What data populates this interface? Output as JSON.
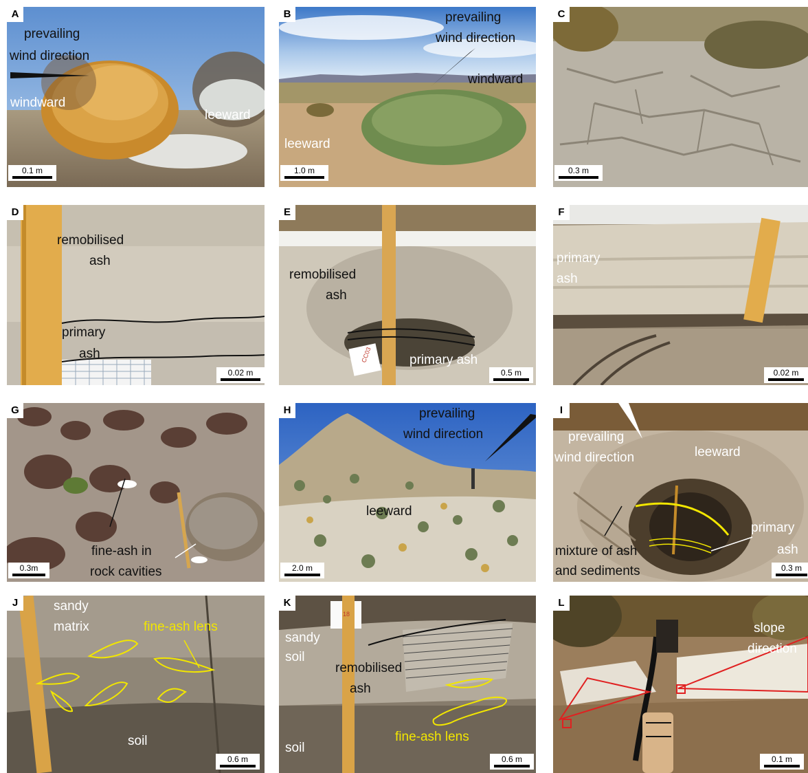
{
  "panels": {
    "A": {
      "letter": "A",
      "scale": "0.1 m",
      "l1": "prevailing",
      "l2": "wind direction",
      "l3": "windward",
      "l4": "leeward"
    },
    "B": {
      "letter": "B",
      "scale": "1.0 m",
      "l1": "prevailing",
      "l2": "wind direction",
      "l3": "windward",
      "l4": "leeward"
    },
    "C": {
      "letter": "C",
      "scale": "0.3 m"
    },
    "D": {
      "letter": "D",
      "scale": "0.02 m",
      "l1": "remobilised",
      "l2": "ash",
      "l3": "primary",
      "l4": "ash"
    },
    "E": {
      "letter": "E",
      "scale": "0.5 m",
      "l1": "remobilised",
      "l2": "ash",
      "l3": "primary ash",
      "paper": "CC03"
    },
    "F": {
      "letter": "F",
      "scale": "0.02 m",
      "l1": "primary",
      "l2": "ash"
    },
    "G": {
      "letter": "G",
      "scale": "0.3m",
      "l1": "fine-ash in",
      "l2": "rock cavities"
    },
    "H": {
      "letter": "H",
      "scale": "2.0 m",
      "l1": "prevailing",
      "l2": "wind direction",
      "l3": "leeward"
    },
    "I": {
      "letter": "I",
      "scale": "0.3 m",
      "l1": "prevailing",
      "l2": "wind direction",
      "l3": "leeward",
      "l4": "mixture of ash",
      "l5": "and sediments",
      "l6": "primary",
      "l7": "ash"
    },
    "J": {
      "letter": "J",
      "scale": "0.6 m",
      "l1": "sandy",
      "l2": "matrix",
      "l3": "fine-ash lens",
      "l4": "soil"
    },
    "K": {
      "letter": "K",
      "scale": "0.6 m",
      "l1": "sandy",
      "l2": "soil",
      "l3": "remobilised",
      "l4": "ash",
      "l5": "fine-ash lens",
      "l6": "soil",
      "paper": "18"
    },
    "L": {
      "letter": "L",
      "scale": "0.1 m",
      "l1": "slope",
      "l2": "direction"
    }
  },
  "colors": {
    "annotation_yellow": "#f2e600",
    "annotation_red": "#e02020",
    "annotation_black": "#000000"
  }
}
